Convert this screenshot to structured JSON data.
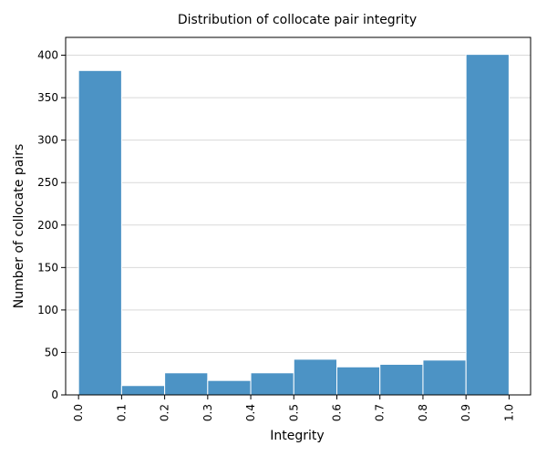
{
  "chart_data": {
    "type": "bar",
    "title": "Distribution of collocate pair integrity",
    "xlabel": "Integrity",
    "ylabel": "Number of collocate pairs",
    "bin_edges": [
      0.0,
      0.1,
      0.2,
      0.3,
      0.4,
      0.5,
      0.6,
      0.7,
      0.8,
      0.9,
      1.0
    ],
    "values": [
      382,
      11,
      26,
      17,
      26,
      42,
      33,
      36,
      41,
      401
    ],
    "xticks": [
      "0.0",
      "0.1",
      "0.2",
      "0.3",
      "0.4",
      "0.5",
      "0.6",
      "0.7",
      "0.8",
      "0.9",
      "1.0"
    ],
    "yticks": [
      0,
      50,
      100,
      150,
      200,
      250,
      300,
      350,
      400
    ],
    "xlim": [
      -0.03,
      1.05
    ],
    "ylim": [
      0,
      421
    ],
    "grid": "horizontal",
    "bar_color": "#4c93c5",
    "bar_edge_color": "#ffffff"
  }
}
